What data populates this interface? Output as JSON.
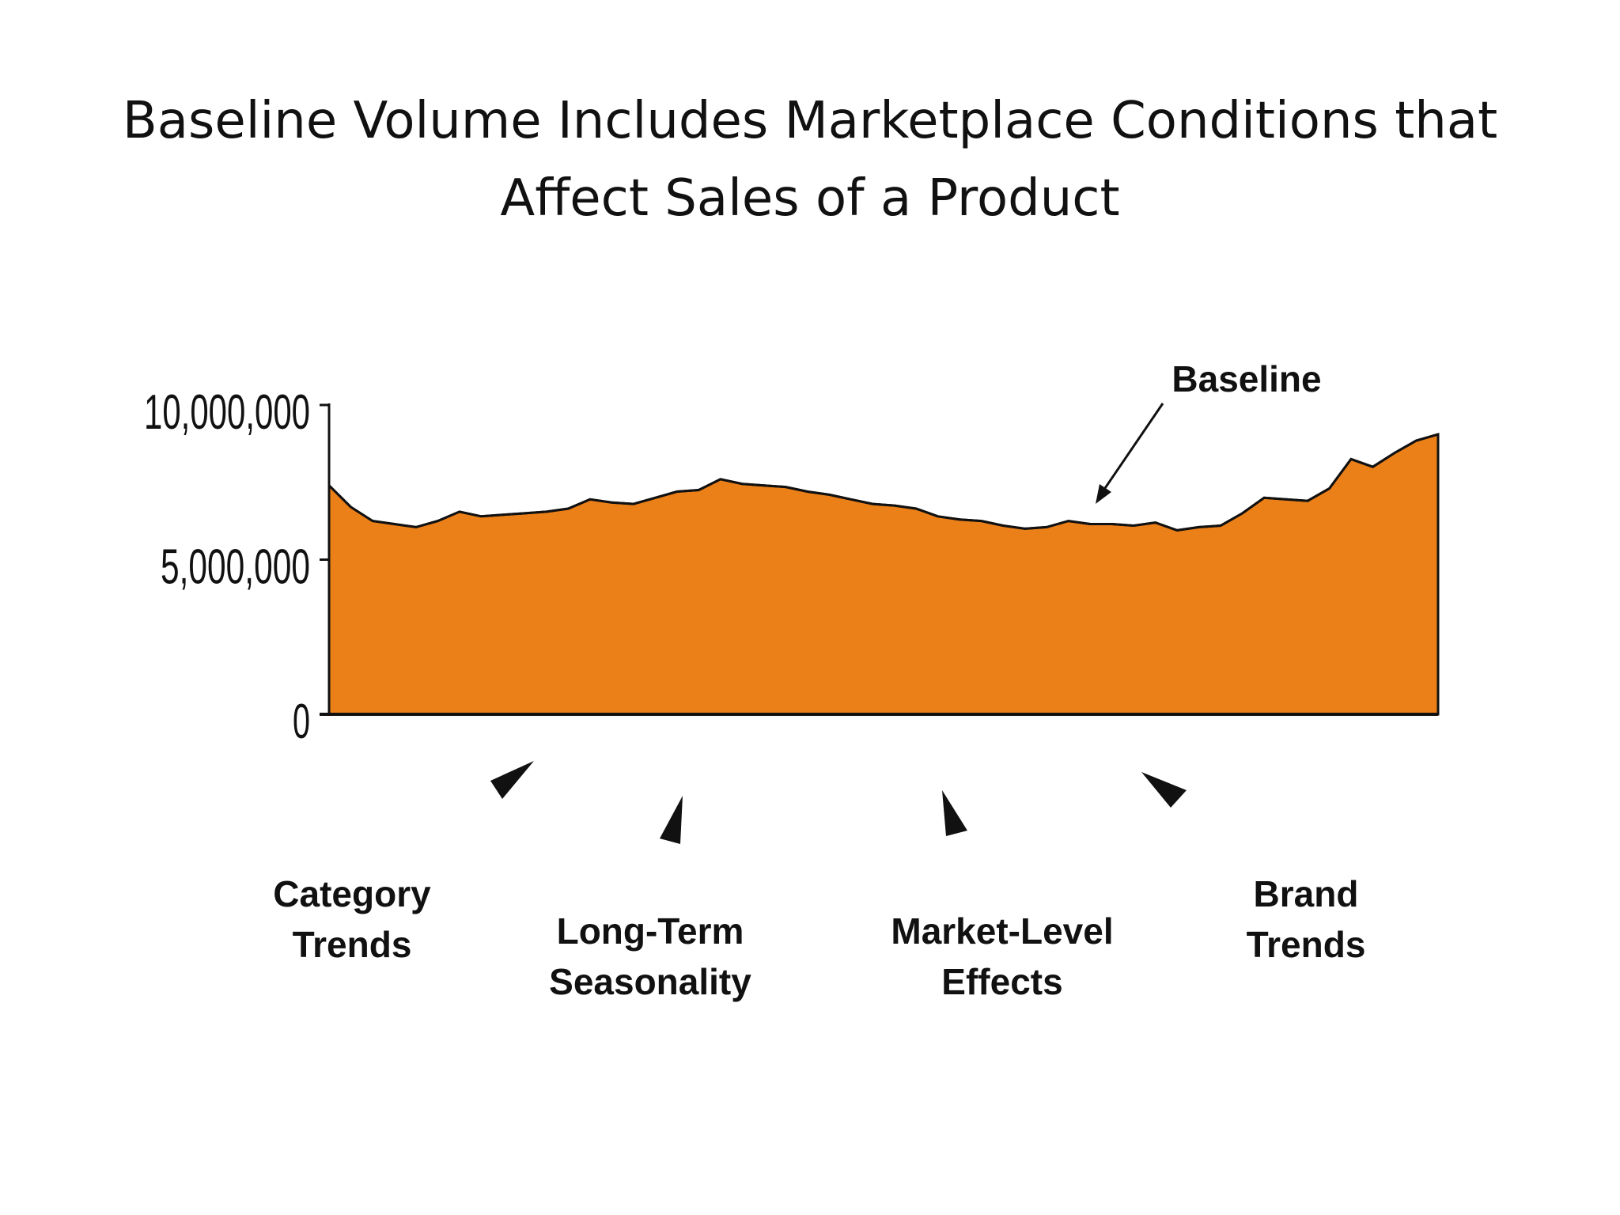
{
  "title": {
    "line1": "Baseline Volume Includes Marketplace Conditions that",
    "line2": "Affect Sales of a Product"
  },
  "chart_data": {
    "type": "area",
    "title": "",
    "xlabel": "",
    "ylabel": "",
    "ylim": [
      0,
      10000000
    ],
    "yticks": [
      {
        "value": 10000000,
        "label": "10,000,000"
      },
      {
        "value": 5000000,
        "label": "5,000,000"
      },
      {
        "value": 0,
        "label": "0"
      }
    ],
    "grid": false,
    "legend": "none",
    "color": "#EC8018",
    "series": [
      {
        "values": [
          7400000,
          6700000,
          6250000,
          6150000,
          6050000,
          6250000,
          6550000,
          6400000,
          6450000,
          6500000,
          6550000,
          6650000,
          6950000,
          6850000,
          6800000,
          7000000,
          7200000,
          7250000,
          7600000,
          7450000,
          7400000,
          7350000,
          7200000,
          7100000,
          6950000,
          6800000,
          6750000,
          6650000,
          6400000,
          6300000,
          6250000,
          6100000,
          6000000,
          6050000,
          6250000,
          6150000,
          6150000,
          6100000,
          6200000,
          5950000,
          6050000,
          6100000,
          6500000,
          7000000,
          6950000,
          6900000,
          7300000,
          8250000,
          8000000,
          8450000,
          8850000,
          9050000
        ]
      }
    ],
    "annotations": [
      {
        "text": "Baseline"
      }
    ]
  },
  "factors": [
    {
      "line1": "Category",
      "line2": "Trends"
    },
    {
      "line1": "Long-Term",
      "line2": "Seasonality"
    },
    {
      "line1": "Market-Level",
      "line2": "Effects"
    },
    {
      "line1": "Brand",
      "line2": "Trends"
    }
  ]
}
